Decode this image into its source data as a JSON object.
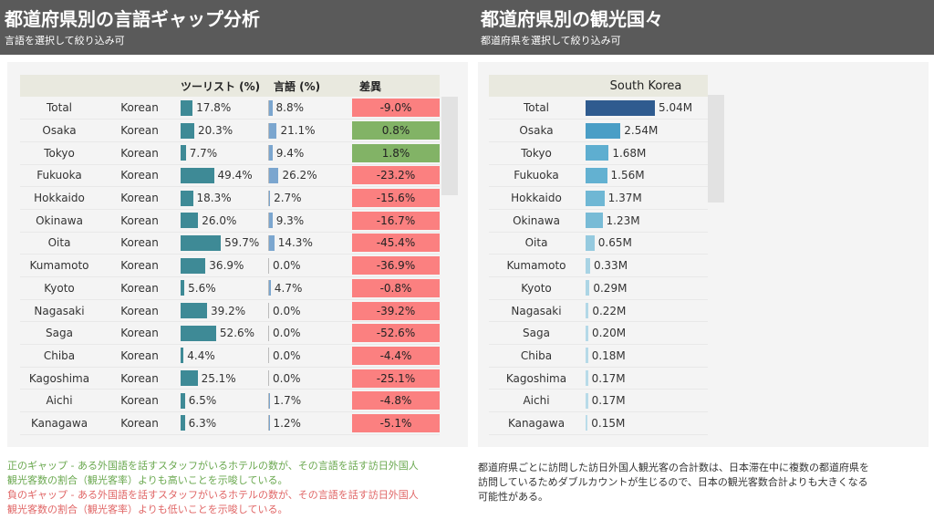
{
  "header": {
    "left_title": "都道府県別の言語ギャップ分析",
    "left_subtitle": "言語を選択して絞り込み可",
    "right_title": "都道府県別の観光国々",
    "right_subtitle": "都道府県を選択して絞り込み可"
  },
  "left_table": {
    "col_tourist": "ツーリスト (%)",
    "col_language": "言語 (%)",
    "col_diff": "差異",
    "colors": {
      "tourist_bar": "#3e8a96",
      "language_bar": "#7ba6cf",
      "positive": "#82b366",
      "negative": "#fb8080"
    },
    "rows": [
      {
        "prefecture": "Total",
        "language": "Korean",
        "tourist": 17.8,
        "tourist_label": "17.8%",
        "lang": 8.8,
        "lang_label": "8.8%",
        "diff_label": "-9.0%",
        "positive": false
      },
      {
        "prefecture": "Osaka",
        "language": "Korean",
        "tourist": 20.3,
        "tourist_label": "20.3%",
        "lang": 21.1,
        "lang_label": "21.1%",
        "diff_label": "0.8%",
        "positive": true
      },
      {
        "prefecture": "Tokyo",
        "language": "Korean",
        "tourist": 7.7,
        "tourist_label": "7.7%",
        "lang": 9.4,
        "lang_label": "9.4%",
        "diff_label": "1.8%",
        "positive": true
      },
      {
        "prefecture": "Fukuoka",
        "language": "Korean",
        "tourist": 49.4,
        "tourist_label": "49.4%",
        "lang": 26.2,
        "lang_label": "26.2%",
        "diff_label": "-23.2%",
        "positive": false
      },
      {
        "prefecture": "Hokkaido",
        "language": "Korean",
        "tourist": 18.3,
        "tourist_label": "18.3%",
        "lang": 2.7,
        "lang_label": "2.7%",
        "diff_label": "-15.6%",
        "positive": false
      },
      {
        "prefecture": "Okinawa",
        "language": "Korean",
        "tourist": 26.0,
        "tourist_label": "26.0%",
        "lang": 9.3,
        "lang_label": "9.3%",
        "diff_label": "-16.7%",
        "positive": false
      },
      {
        "prefecture": "Oita",
        "language": "Korean",
        "tourist": 59.7,
        "tourist_label": "59.7%",
        "lang": 14.3,
        "lang_label": "14.3%",
        "diff_label": "-45.4%",
        "positive": false
      },
      {
        "prefecture": "Kumamoto",
        "language": "Korean",
        "tourist": 36.9,
        "tourist_label": "36.9%",
        "lang": 0.0,
        "lang_label": "0.0%",
        "diff_label": "-36.9%",
        "positive": false
      },
      {
        "prefecture": "Kyoto",
        "language": "Korean",
        "tourist": 5.6,
        "tourist_label": "5.6%",
        "lang": 4.7,
        "lang_label": "4.7%",
        "diff_label": "-0.8%",
        "positive": false
      },
      {
        "prefecture": "Nagasaki",
        "language": "Korean",
        "tourist": 39.2,
        "tourist_label": "39.2%",
        "lang": 0.0,
        "lang_label": "0.0%",
        "diff_label": "-39.2%",
        "positive": false
      },
      {
        "prefecture": "Saga",
        "language": "Korean",
        "tourist": 52.6,
        "tourist_label": "52.6%",
        "lang": 0.0,
        "lang_label": "0.0%",
        "diff_label": "-52.6%",
        "positive": false
      },
      {
        "prefecture": "Chiba",
        "language": "Korean",
        "tourist": 4.4,
        "tourist_label": "4.4%",
        "lang": 0.0,
        "lang_label": "0.0%",
        "diff_label": "-4.4%",
        "positive": false
      },
      {
        "prefecture": "Kagoshima",
        "language": "Korean",
        "tourist": 25.1,
        "tourist_label": "25.1%",
        "lang": 0.0,
        "lang_label": "0.0%",
        "diff_label": "-25.1%",
        "positive": false
      },
      {
        "prefecture": "Aichi",
        "language": "Korean",
        "tourist": 6.5,
        "tourist_label": "6.5%",
        "lang": 1.7,
        "lang_label": "1.7%",
        "diff_label": "-4.8%",
        "positive": false
      },
      {
        "prefecture": "Kanagawa",
        "language": "Korean",
        "tourist": 6.3,
        "tourist_label": "6.3%",
        "lang": 1.2,
        "lang_label": "1.2%",
        "diff_label": "-5.1%",
        "positive": false
      }
    ]
  },
  "right_table": {
    "country": "South Korea",
    "max_value": 5.04,
    "rows": [
      {
        "prefecture": "Total",
        "value": 5.04,
        "label": "5.04M",
        "color": "#2f5b8f"
      },
      {
        "prefecture": "Osaka",
        "value": 2.54,
        "label": "2.54M",
        "color": "#4a9ec6"
      },
      {
        "prefecture": "Tokyo",
        "value": 1.68,
        "label": "1.68M",
        "color": "#5eaed0"
      },
      {
        "prefecture": "Fukuoka",
        "value": 1.56,
        "label": "1.56M",
        "color": "#63b1d1"
      },
      {
        "prefecture": "Hokkaido",
        "value": 1.37,
        "label": "1.37M",
        "color": "#6fb7d4"
      },
      {
        "prefecture": "Okinawa",
        "value": 1.23,
        "label": "1.23M",
        "color": "#78bbd6"
      },
      {
        "prefecture": "Oita",
        "value": 0.65,
        "label": "0.65M",
        "color": "#95cadf"
      },
      {
        "prefecture": "Kumamoto",
        "value": 0.33,
        "label": "0.33M",
        "color": "#a8d3e4"
      },
      {
        "prefecture": "Kyoto",
        "value": 0.29,
        "label": "0.29M",
        "color": "#acd5e5"
      },
      {
        "prefecture": "Nagasaki",
        "value": 0.22,
        "label": "0.22M",
        "color": "#b2d8e7"
      },
      {
        "prefecture": "Saga",
        "value": 0.2,
        "label": "0.20M",
        "color": "#b4d9e8"
      },
      {
        "prefecture": "Chiba",
        "value": 0.18,
        "label": "0.18M",
        "color": "#b6dae8"
      },
      {
        "prefecture": "Kagoshima",
        "value": 0.17,
        "label": "0.17M",
        "color": "#b8dbe9"
      },
      {
        "prefecture": "Aichi",
        "value": 0.17,
        "label": "0.17M",
        "color": "#b8dbe9"
      },
      {
        "prefecture": "Kanagawa",
        "value": 0.15,
        "label": "0.15M",
        "color": "#badce9"
      }
    ]
  },
  "notes": {
    "positive_line1": "正のギャップ - ある外国語を話すスタッフがいるホテルの数が、その言語を話す訪日外国人",
    "positive_line2": "観光客数の割合（観光客率）よりも高いことを示唆している。",
    "negative_line1": "負のギャップ - ある外国語を話すスタッフがいるホテルの数が、その言語を話す訪日外国人",
    "negative_line2": "観光客数の割合（観光客率）よりも低いことを示唆している。",
    "positive_color": "#6aa84f",
    "negative_color": "#e06666",
    "right_line1": "都道府県ごとに訪問した訪日外国人観光客の合計数は、日本滞在中に複数の都道府県を",
    "right_line2": "訪問しているためダブルカウントが生じるので、日本の観光客数合計よりも大きくなる",
    "right_line3": "可能性がある。"
  }
}
